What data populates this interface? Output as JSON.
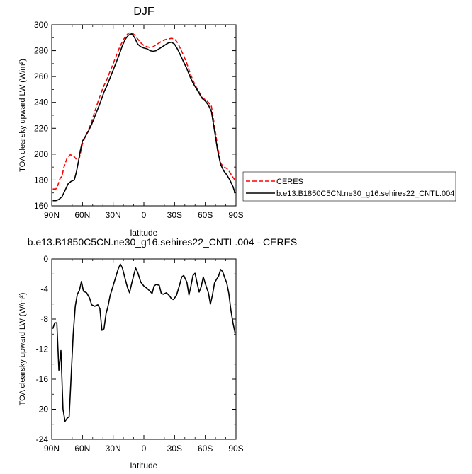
{
  "chart_data": [
    {
      "type": "line",
      "title": "DJF",
      "xlabel": "latitude",
      "ylabel": "TOA clearsky upward LW (W/m²)",
      "xlim": [
        90,
        -90
      ],
      "ylim": [
        160,
        300
      ],
      "x_ticks": [
        90,
        60,
        30,
        0,
        -30,
        -60,
        -90
      ],
      "x_tick_labels": [
        "90N",
        "60N",
        "30N",
        "0",
        "30S",
        "60S",
        "90S"
      ],
      "y_ticks": [
        160,
        180,
        200,
        220,
        240,
        260,
        280,
        300
      ],
      "y_tick_labels": [
        "160",
        "180",
        "200",
        "220",
        "240",
        "260",
        "280",
        "300"
      ],
      "legend_position": "right",
      "series": [
        {
          "name": "CERES",
          "color": "#ff0000",
          "dash": "dashed",
          "points": [
            [
              89,
              173
            ],
            [
              86,
              173
            ],
            [
              84,
              176
            ],
            [
              82,
              181
            ],
            [
              80,
              183
            ],
            [
              78,
              190
            ],
            [
              75,
              197
            ],
            [
              72,
              199.5
            ],
            [
              69,
              199
            ],
            [
              66,
              196
            ],
            [
              63,
              197
            ],
            [
              60,
              208
            ],
            [
              57,
              214
            ],
            [
              54,
              219
            ],
            [
              51,
              225
            ],
            [
              48,
              233
            ],
            [
              45,
              240
            ],
            [
              42,
              247
            ],
            [
              39,
              253
            ],
            [
              36,
              258
            ],
            [
              33,
              264
            ],
            [
              30,
              270
            ],
            [
              27,
              276
            ],
            [
              24,
              282
            ],
            [
              21,
              287
            ],
            [
              18,
              291
            ],
            [
              15,
              293.5
            ],
            [
              12,
              294
            ],
            [
              9,
              292
            ],
            [
              6,
              289
            ],
            [
              3,
              286
            ],
            [
              0,
              284
            ],
            [
              -3,
              283
            ],
            [
              -6,
              282.5
            ],
            [
              -9,
              283
            ],
            [
              -12,
              284.5
            ],
            [
              -15,
              286
            ],
            [
              -18,
              287.5
            ],
            [
              -21,
              288.5
            ],
            [
              -24,
              289
            ],
            [
              -27,
              289.5
            ],
            [
              -30,
              289
            ],
            [
              -33,
              286
            ],
            [
              -36,
              281
            ],
            [
              -39,
              276
            ],
            [
              -42,
              270
            ],
            [
              -45,
              263
            ],
            [
              -48,
              257
            ],
            [
              -51,
              252
            ],
            [
              -54,
              248
            ],
            [
              -57,
              244
            ],
            [
              -60,
              242
            ],
            [
              -63,
              240
            ],
            [
              -66,
              237
            ],
            [
              -69,
              222
            ],
            [
              -72,
              206
            ],
            [
              -75,
              193
            ],
            [
              -78,
              190
            ],
            [
              -81,
              189
            ],
            [
              -84,
              186
            ],
            [
              -87,
              182
            ],
            [
              -89,
              180
            ]
          ]
        },
        {
          "name": "b.e13.B1850C5CN.ne30_g16.sehires22_CNTL.004",
          "color": "#000000",
          "dash": "solid",
          "points": [
            [
              89,
              164
            ],
            [
              86,
              164
            ],
            [
              83,
              165
            ],
            [
              80,
              167
            ],
            [
              77,
              172
            ],
            [
              74,
              177
            ],
            [
              71,
              179
            ],
            [
              68,
              180
            ],
            [
              66,
              186
            ],
            [
              64,
              194
            ],
            [
              62,
              203
            ],
            [
              60,
              210
            ],
            [
              57,
              214
            ],
            [
              54,
              218
            ],
            [
              51,
              223
            ],
            [
              48,
              229
            ],
            [
              45,
              235
            ],
            [
              42,
              241
            ],
            [
              39,
              248
            ],
            [
              36,
              253
            ],
            [
              33,
              259
            ],
            [
              30,
              265
            ],
            [
              27,
              271
            ],
            [
              24,
              277
            ],
            [
              21,
              284
            ],
            [
              18,
              289
            ],
            [
              15,
              292
            ],
            [
              12,
              293
            ],
            [
              9,
              290
            ],
            [
              6,
              285
            ],
            [
              3,
              283
            ],
            [
              0,
              282
            ],
            [
              -3,
              281.5
            ],
            [
              -6,
              280
            ],
            [
              -9,
              279.5
            ],
            [
              -12,
              280
            ],
            [
              -15,
              281.5
            ],
            [
              -18,
              283
            ],
            [
              -21,
              284.5
            ],
            [
              -24,
              286
            ],
            [
              -27,
              286.5
            ],
            [
              -30,
              285
            ],
            [
              -33,
              281
            ],
            [
              -36,
              276
            ],
            [
              -39,
              271
            ],
            [
              -42,
              266
            ],
            [
              -45,
              260
            ],
            [
              -48,
              255
            ],
            [
              -51,
              251
            ],
            [
              -54,
              247
            ],
            [
              -57,
              243
            ],
            [
              -60,
              241
            ],
            [
              -63,
              238
            ],
            [
              -66,
              233
            ],
            [
              -69,
              218
            ],
            [
              -72,
              203
            ],
            [
              -75,
              192
            ],
            [
              -78,
              187
            ],
            [
              -81,
              184
            ],
            [
              -84,
              180
            ],
            [
              -87,
              175
            ],
            [
              -89,
              170
            ]
          ]
        }
      ]
    },
    {
      "type": "line",
      "title": "b.e13.B1850C5CN.ne30_g16.sehires22_CNTL.004 - CERES",
      "xlabel": "latitude",
      "ylabel": "TOA clearsky upward LW (W/m²)",
      "xlim": [
        90,
        -90
      ],
      "ylim": [
        -24,
        0
      ],
      "x_ticks": [
        90,
        60,
        30,
        0,
        -30,
        -60,
        -90
      ],
      "x_tick_labels": [
        "90N",
        "60N",
        "30N",
        "0",
        "30S",
        "60S",
        "90S"
      ],
      "y_ticks": [
        -24,
        -20,
        -16,
        -12,
        -8,
        -4,
        0
      ],
      "y_tick_labels": [
        "-24",
        "-20",
        "-16",
        "-12",
        "-8",
        "-4",
        "0"
      ],
      "series": [
        {
          "color": "#000000",
          "dash": "solid",
          "points": [
            [
              89,
              -9.3
            ],
            [
              87,
              -8.5
            ],
            [
              85,
              -8.5
            ],
            [
              83,
              -14.8
            ],
            [
              81,
              -12.2
            ],
            [
              79,
              -20
            ],
            [
              77,
              -21.6
            ],
            [
              75,
              -21.2
            ],
            [
              73,
              -21
            ],
            [
              69,
              -10
            ],
            [
              67,
              -6.3
            ],
            [
              65,
              -4.7
            ],
            [
              63,
              -4.2
            ],
            [
              61,
              -3.0
            ],
            [
              59,
              -4.3
            ],
            [
              56,
              -4.5
            ],
            [
              53,
              -5.2
            ],
            [
              51,
              -6.1
            ],
            [
              48,
              -6.3
            ],
            [
              45,
              -6.1
            ],
            [
              43,
              -6.6
            ],
            [
              41,
              -9.5
            ],
            [
              39,
              -9.3
            ],
            [
              37,
              -7.3
            ],
            [
              35,
              -6.3
            ],
            [
              33,
              -4.9
            ],
            [
              31,
              -4.0
            ],
            [
              29,
              -3.1
            ],
            [
              27,
              -2.2
            ],
            [
              25,
              -1.3
            ],
            [
              23,
              -0.7
            ],
            [
              21,
              -1.2
            ],
            [
              19,
              -2.3
            ],
            [
              16,
              -3.8
            ],
            [
              14,
              -4.5
            ],
            [
              12,
              -3.3
            ],
            [
              10,
              -2.2
            ],
            [
              8,
              -1.2
            ],
            [
              6,
              -1.8
            ],
            [
              3,
              -3.1
            ],
            [
              0,
              -3.6
            ],
            [
              -3,
              -3.9
            ],
            [
              -6,
              -4.3
            ],
            [
              -8,
              -4.6
            ],
            [
              -10,
              -3.6
            ],
            [
              -12,
              -3.4
            ],
            [
              -15,
              -3.5
            ],
            [
              -17,
              -4.6
            ],
            [
              -19,
              -4.7
            ],
            [
              -22,
              -4.5
            ],
            [
              -25,
              -4.9
            ],
            [
              -27,
              -5.3
            ],
            [
              -29,
              -5.4
            ],
            [
              -32,
              -4.8
            ],
            [
              -35,
              -3.4
            ],
            [
              -37,
              -2.4
            ],
            [
              -39,
              -2.2
            ],
            [
              -42,
              -3.1
            ],
            [
              -44,
              -4.8
            ],
            [
              -46,
              -3.6
            ],
            [
              -48,
              -2.2
            ],
            [
              -50,
              -1.9
            ],
            [
              -52,
              -3.2
            ],
            [
              -54,
              -4.4
            ],
            [
              -56,
              -3.7
            ],
            [
              -58,
              -2.4
            ],
            [
              -61,
              -3.7
            ],
            [
              -63,
              -4.5
            ],
            [
              -65,
              -6.0
            ],
            [
              -67,
              -4.8
            ],
            [
              -69,
              -3.2
            ],
            [
              -71,
              -2.7
            ],
            [
              -73,
              -2.3
            ],
            [
              -75,
              -1.4
            ],
            [
              -77,
              -1.7
            ],
            [
              -79,
              -2.5
            ],
            [
              -81,
              -3.2
            ],
            [
              -83,
              -4.6
            ],
            [
              -85,
              -6.8
            ],
            [
              -87,
              -8.5
            ],
            [
              -89,
              -9.8
            ]
          ]
        }
      ]
    }
  ]
}
